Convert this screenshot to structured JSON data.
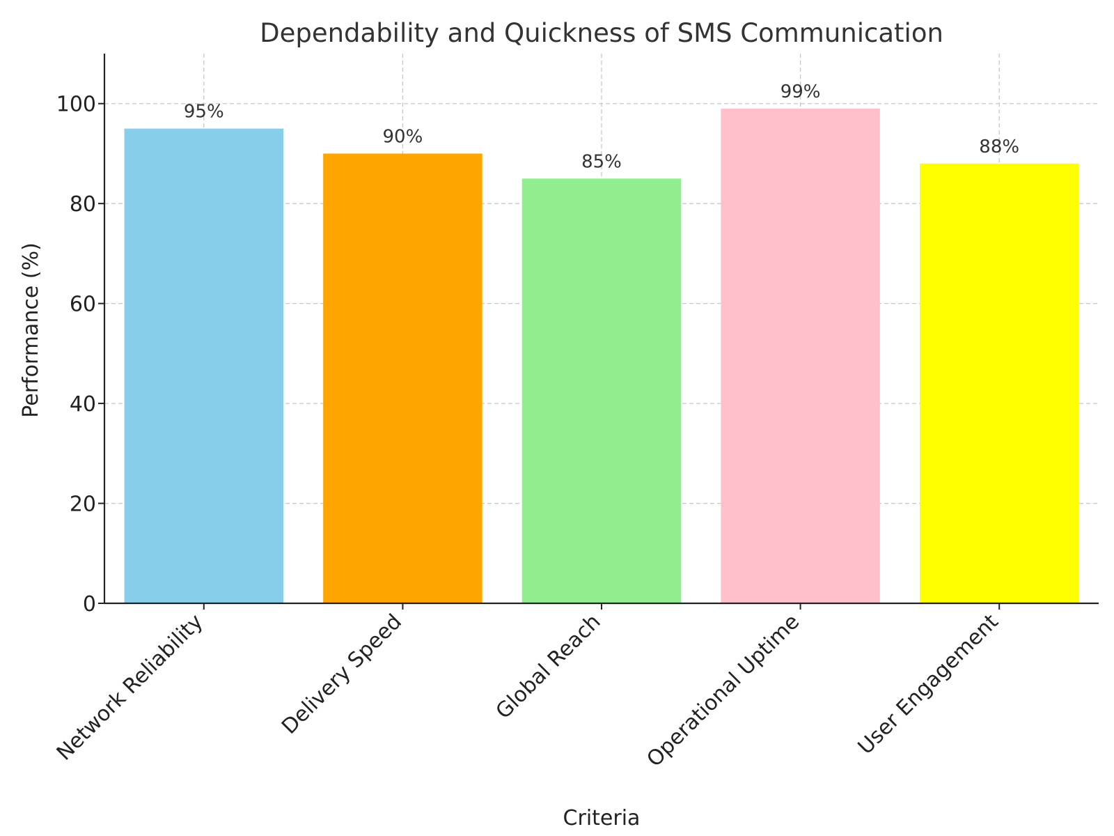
{
  "chart_data": {
    "type": "bar",
    "title": "Dependability and Quickness of SMS Communication",
    "xlabel": "Criteria",
    "ylabel": "Performance (%)",
    "categories": [
      "Network Reliability",
      "Delivery Speed",
      "Global Reach",
      "Operational Uptime",
      "User Engagement"
    ],
    "values": [
      95,
      90,
      85,
      99,
      88
    ],
    "data_labels": [
      "95%",
      "90%",
      "85%",
      "99%",
      "88%"
    ],
    "colors": [
      "#87ceeb",
      "#ffa500",
      "#90ee90",
      "#ffc0cb",
      "#ffff00"
    ],
    "ylim": [
      0,
      110
    ],
    "yticks": [
      0,
      20,
      40,
      60,
      80,
      100
    ],
    "grid": true,
    "legend": "none"
  }
}
